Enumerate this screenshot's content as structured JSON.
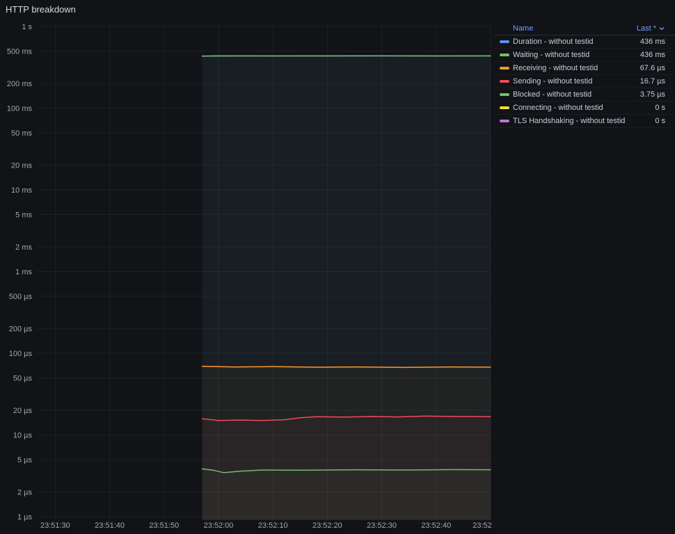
{
  "panel": {
    "title": "HTTP breakdown"
  },
  "legend": {
    "name_header": "Name",
    "value_header": "Last *"
  },
  "colors": {
    "background": "#111317",
    "grid": "rgba(204,204,220,0.07)",
    "axis_text": "#A4A7AE",
    "legend_text": "#CCCCDC",
    "header_link": "#6E9FFF"
  },
  "chart_data": {
    "type": "line",
    "title": "HTTP breakdown",
    "legend_position": "right-table",
    "grid": true,
    "fill_opacity": 0.045,
    "line_width": 1.5,
    "x_axis": {
      "domain_seconds": [
        26.5,
        110
      ],
      "tick_seconds": [
        30,
        40,
        50,
        60,
        70,
        80,
        90,
        100,
        110
      ],
      "tick_labels": [
        "23:51:30",
        "23:51:40",
        "23:51:50",
        "23:52:00",
        "23:52:10",
        "23:52:20",
        "23:52:30",
        "23:52:40",
        "23:52"
      ]
    },
    "y_axis": {
      "scale": "log10",
      "unit": "seconds",
      "domain": [
        1e-06,
        1
      ],
      "ticks": [
        {
          "label": "1 s",
          "value": 1
        },
        {
          "label": "500 ms",
          "value": 0.5
        },
        {
          "label": "200 ms",
          "value": 0.2
        },
        {
          "label": "100 ms",
          "value": 0.1
        },
        {
          "label": "50 ms",
          "value": 0.05
        },
        {
          "label": "20 ms",
          "value": 0.02
        },
        {
          "label": "10 ms",
          "value": 0.01
        },
        {
          "label": "5 ms",
          "value": 0.005
        },
        {
          "label": "2 ms",
          "value": 0.002
        },
        {
          "label": "1 ms",
          "value": 0.001
        },
        {
          "label": "500 µs",
          "value": 0.0005
        },
        {
          "label": "200 µs",
          "value": 0.0002
        },
        {
          "label": "100 µs",
          "value": 0.0001
        },
        {
          "label": "50 µs",
          "value": 5e-05
        },
        {
          "label": "20 µs",
          "value": 2e-05
        },
        {
          "label": "10 µs",
          "value": 1e-05
        },
        {
          "label": "5 µs",
          "value": 5e-06
        },
        {
          "label": "2 µs",
          "value": 2e-06
        },
        {
          "label": "1 µs",
          "value": 1e-06
        }
      ]
    },
    "series": [
      {
        "name": "Duration - without testid",
        "color": "#5794F2",
        "last": "436 ms",
        "points": [
          [
            57,
            0.434
          ],
          [
            70,
            0.436
          ],
          [
            85,
            0.435
          ],
          [
            100,
            0.436
          ],
          [
            110,
            0.436
          ]
        ]
      },
      {
        "name": "Waiting - without testid",
        "color": "#73BF69",
        "last": "436 ms",
        "points": [
          [
            57,
            0.433
          ],
          [
            60,
            0.437
          ],
          [
            70,
            0.435
          ],
          [
            80,
            0.436
          ],
          [
            90,
            0.437
          ],
          [
            100,
            0.435
          ],
          [
            110,
            0.436
          ]
        ]
      },
      {
        "name": "Receiving - without testid",
        "color": "#FF9830",
        "last": "67.6 µs",
        "points": [
          [
            57,
            6.9e-05
          ],
          [
            63,
            6.8e-05
          ],
          [
            70,
            6.85e-05
          ],
          [
            78,
            6.75e-05
          ],
          [
            86,
            6.8e-05
          ],
          [
            94,
            6.7e-05
          ],
          [
            102,
            6.78e-05
          ],
          [
            110,
            6.76e-05
          ]
        ]
      },
      {
        "name": "Sending - without testid",
        "color": "#F2495C",
        "last": "16.7 µs",
        "points": [
          [
            57,
            1.58e-05
          ],
          [
            60,
            1.5e-05
          ],
          [
            64,
            1.52e-05
          ],
          [
            68,
            1.5e-05
          ],
          [
            72,
            1.53e-05
          ],
          [
            75,
            1.62e-05
          ],
          [
            78,
            1.67e-05
          ],
          [
            83,
            1.65e-05
          ],
          [
            88,
            1.68e-05
          ],
          [
            93,
            1.66e-05
          ],
          [
            98,
            1.7e-05
          ],
          [
            104,
            1.68e-05
          ],
          [
            110,
            1.67e-05
          ]
        ]
      },
      {
        "name": "Blocked - without testid",
        "color": "#73BF69",
        "last": "3.75 µs",
        "points": [
          [
            57,
            3.85e-06
          ],
          [
            59,
            3.7e-06
          ],
          [
            61,
            3.45e-06
          ],
          [
            64,
            3.6e-06
          ],
          [
            68,
            3.72e-06
          ],
          [
            75,
            3.7e-06
          ],
          [
            85,
            3.75e-06
          ],
          [
            95,
            3.72e-06
          ],
          [
            103,
            3.76e-06
          ],
          [
            110,
            3.75e-06
          ]
        ]
      },
      {
        "name": "Connecting - without testid",
        "color": "#FADE2A",
        "last": "0 s",
        "points": []
      },
      {
        "name": "TLS Handshaking - without testid",
        "color": "#B877D9",
        "last": "0 s",
        "points": []
      }
    ]
  }
}
